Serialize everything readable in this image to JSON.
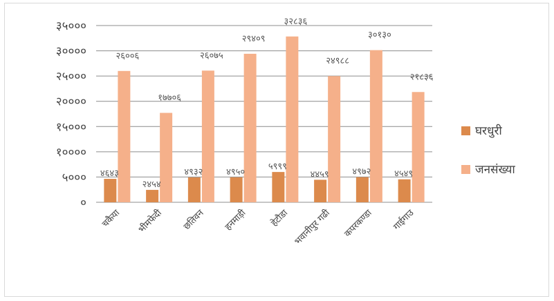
{
  "chart_data": {
    "type": "bar",
    "categories": [
      "चकैया",
      "भीमफेदी",
      "छतिवन",
      "हनमाड़ी",
      "हेटौडा",
      "भवानीपुर गढी",
      "कपरकण्डा",
      "गाईगाउ"
    ],
    "series": [
      {
        "name": "घरधुरी",
        "color": "#dc8a4c",
        "values": [
          4643,
          2454,
          4932,
          4950,
          5999,
          4459,
          4972,
          4549
        ],
        "labels": [
          "४६४३",
          "२४५४",
          "४९३२",
          "४९५०",
          "५९९९",
          "४४५९",
          "४९७२",
          "४५४९"
        ]
      },
      {
        "name": "जनसंख्या",
        "color": "#f5b08a",
        "values": [
          26006,
          17706,
          26075,
          29409,
          32836,
          24988,
          30130,
          21836
        ],
        "labels": [
          "२६००६",
          "१७७०६",
          "२६०७५",
          "२९४०९",
          "३२८३६",
          "२४९८८",
          "३०१३०",
          "२१८३६"
        ]
      }
    ],
    "ylim": [
      0,
      35000
    ],
    "yticks": [
      0,
      5000,
      10000,
      15000,
      20000,
      25000,
      30000,
      35000
    ],
    "ytick_labels": [
      "०",
      "५०००",
      "१००००",
      "१५०००",
      "२००००",
      "२५०००",
      "३००००",
      "३५०००"
    ],
    "grid": true,
    "legend_position": "right",
    "title": "",
    "xlabel": "",
    "ylabel": ""
  }
}
